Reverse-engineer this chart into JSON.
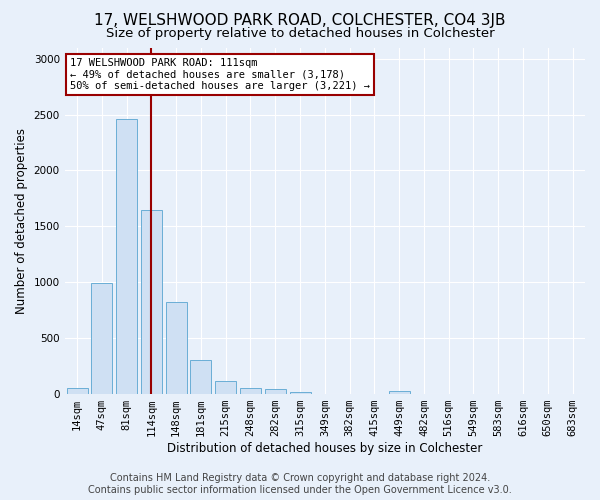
{
  "title": "17, WELSHWOOD PARK ROAD, COLCHESTER, CO4 3JB",
  "subtitle": "Size of property relative to detached houses in Colchester",
  "xlabel": "Distribution of detached houses by size in Colchester",
  "ylabel": "Number of detached properties",
  "bar_color": "#cfe0f3",
  "bar_edge_color": "#6aaed6",
  "categories": [
    "14sqm",
    "47sqm",
    "81sqm",
    "114sqm",
    "148sqm",
    "181sqm",
    "215sqm",
    "248sqm",
    "282sqm",
    "315sqm",
    "349sqm",
    "382sqm",
    "415sqm",
    "449sqm",
    "482sqm",
    "516sqm",
    "549sqm",
    "583sqm",
    "616sqm",
    "650sqm",
    "683sqm"
  ],
  "values": [
    55,
    990,
    2460,
    1650,
    820,
    305,
    120,
    55,
    45,
    20,
    5,
    0,
    0,
    30,
    0,
    0,
    0,
    0,
    0,
    0,
    0
  ],
  "ylim": [
    0,
    3100
  ],
  "yticks": [
    0,
    500,
    1000,
    1500,
    2000,
    2500,
    3000
  ],
  "vline_color": "#990000",
  "annotation_text": "17 WELSHWOOD PARK ROAD: 111sqm\n← 49% of detached houses are smaller (3,178)\n50% of semi-detached houses are larger (3,221) →",
  "annotation_box_color": "#ffffff",
  "annotation_border_color": "#990000",
  "footer_line1": "Contains HM Land Registry data © Crown copyright and database right 2024.",
  "footer_line2": "Contains public sector information licensed under the Open Government Licence v3.0.",
  "background_color": "#e8f0fa",
  "grid_color": "#ffffff",
  "title_fontsize": 11,
  "subtitle_fontsize": 9.5,
  "axis_label_fontsize": 8.5,
  "tick_fontsize": 7.5,
  "footer_fontsize": 7
}
